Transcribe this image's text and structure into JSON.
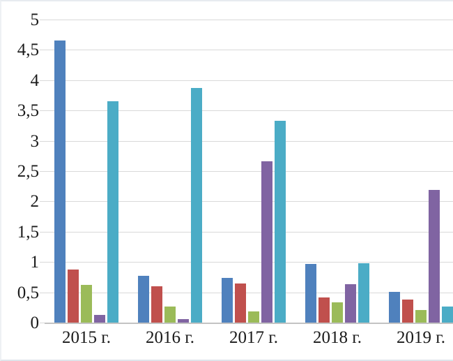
{
  "chart_data": {
    "type": "bar",
    "title": "",
    "xlabel": "",
    "ylabel": "",
    "categories": [
      "2015 г.",
      "2016 г.",
      "2017 г.",
      "2018 г.",
      "2019 г."
    ],
    "series": [
      {
        "name": "blue",
        "color": "#4F81BD",
        "values": [
          4.65,
          0.77,
          0.74,
          0.97,
          0.51
        ]
      },
      {
        "name": "red",
        "color": "#C0504D",
        "values": [
          0.88,
          0.6,
          0.64,
          0.41,
          0.38
        ]
      },
      {
        "name": "green",
        "color": "#9BBB59",
        "values": [
          0.62,
          0.27,
          0.18,
          0.33,
          0.21
        ]
      },
      {
        "name": "purple",
        "color": "#8064A2",
        "values": [
          0.13,
          0.06,
          2.66,
          0.63,
          2.19
        ]
      },
      {
        "name": "teal",
        "color": "#4BACC6",
        "values": [
          3.65,
          3.87,
          3.33,
          0.98,
          0.27
        ]
      }
    ],
    "y_axis": {
      "min": 0,
      "max": 5,
      "step": 0.5,
      "tick_labels": [
        "0",
        "0,5",
        "1",
        "1,5",
        "2",
        "2,5",
        "3",
        "3,5",
        "4",
        "4,5",
        "5"
      ],
      "decimal_separator": ","
    },
    "grid": true,
    "gridline_color": "#d9d9d9",
    "baseline_color": "#c3c3c3",
    "legend_position": "none",
    "background_color": "#ffffff"
  }
}
